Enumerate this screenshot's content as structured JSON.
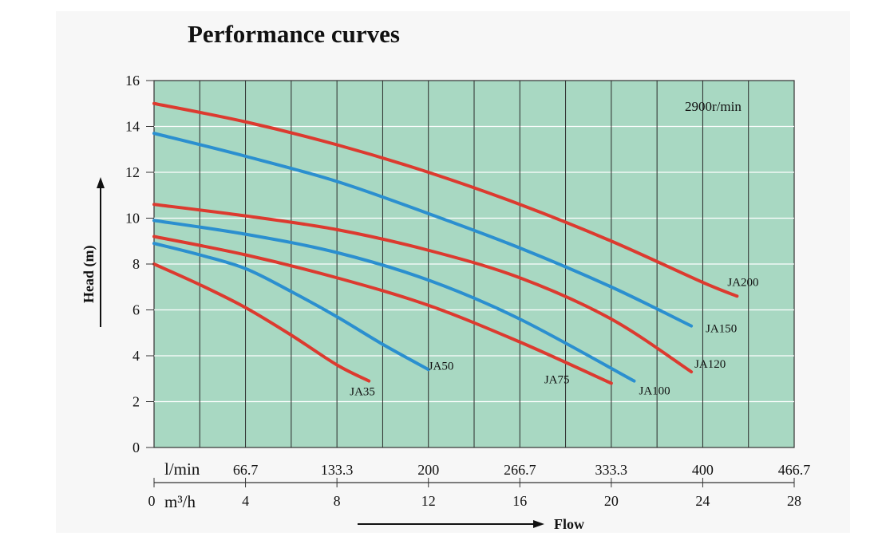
{
  "chart_data": {
    "type": "line",
    "title": "Performance curves",
    "ylabel": "Head (m)",
    "xlabel": "Flow",
    "speed_note": "2900r/min",
    "x_unit": "m³/h",
    "x_unit_secondary": "l/min",
    "xlim": [
      0,
      28
    ],
    "ylim": [
      0,
      16
    ],
    "y_ticks": [
      "0",
      "2",
      "4",
      "6",
      "8",
      "10",
      "12",
      "14",
      "16"
    ],
    "x_ticks_m3h": [
      "0",
      "4",
      "8",
      "12",
      "16",
      "20",
      "24",
      "28"
    ],
    "x_ticks_lmin": [
      "66.7",
      "133.3",
      "200",
      "266.7",
      "333.3",
      "400",
      "466.7"
    ],
    "grid": true,
    "background_color": "#a8d8c2",
    "series": [
      {
        "name": "JA35",
        "color": "#dc3a2f",
        "x": [
          0,
          2,
          4,
          6,
          8,
          9.4
        ],
        "y": [
          8.0,
          7.1,
          6.1,
          4.9,
          3.6,
          2.9
        ]
      },
      {
        "name": "JA50",
        "color": "#2b8fcf",
        "x": [
          0,
          2,
          4,
          6,
          8,
          10,
          12
        ],
        "y": [
          8.9,
          8.4,
          7.8,
          6.8,
          5.7,
          4.5,
          3.4
        ]
      },
      {
        "name": "JA75",
        "color": "#dc3a2f",
        "x": [
          0,
          4,
          8,
          12,
          16,
          20
        ],
        "y": [
          9.2,
          8.4,
          7.4,
          6.2,
          4.6,
          2.8
        ]
      },
      {
        "name": "JA100",
        "color": "#2b8fcf",
        "x": [
          0,
          4,
          8,
          12,
          16,
          21
        ],
        "y": [
          9.9,
          9.3,
          8.5,
          7.3,
          5.6,
          2.9
        ]
      },
      {
        "name": "JA120",
        "color": "#dc3a2f",
        "x": [
          0,
          4,
          8,
          12,
          16,
          20,
          23.5
        ],
        "y": [
          10.6,
          10.1,
          9.5,
          8.6,
          7.4,
          5.6,
          3.3
        ]
      },
      {
        "name": "JA150",
        "color": "#2b8fcf",
        "x": [
          0,
          4,
          8,
          12,
          16,
          20,
          23.5
        ],
        "y": [
          13.7,
          12.7,
          11.6,
          10.2,
          8.7,
          7.0,
          5.3
        ]
      },
      {
        "name": "JA200",
        "color": "#dc3a2f",
        "x": [
          0,
          4,
          8,
          12,
          16,
          20,
          24,
          25.5
        ],
        "y": [
          15.0,
          14.2,
          13.2,
          12.0,
          10.6,
          9.0,
          7.2,
          6.6
        ]
      }
    ]
  }
}
